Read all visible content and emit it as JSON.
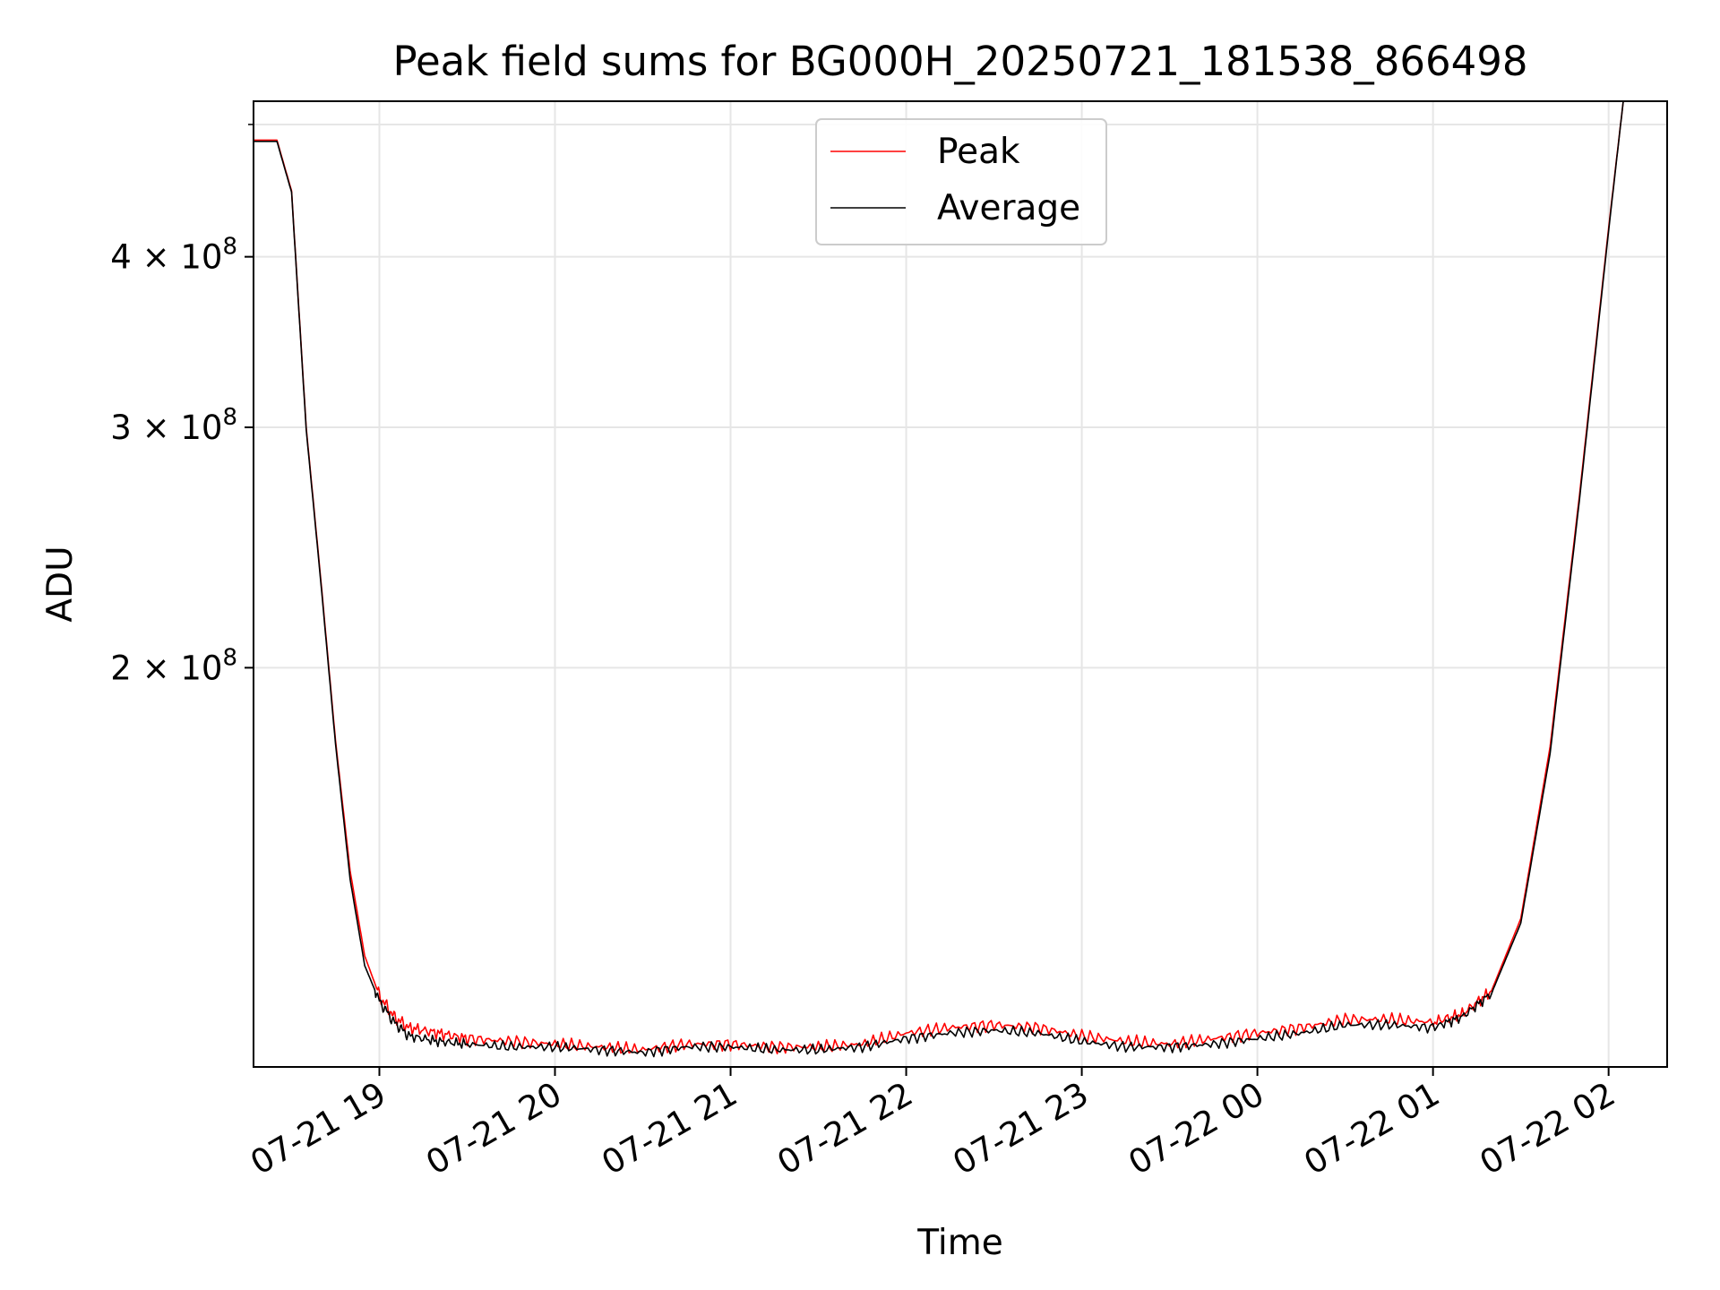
{
  "chart_data": {
    "type": "line",
    "title": "Peak field sums for BG000H_20250721_181538_866498",
    "xlabel": "Time",
    "ylabel": "ADU",
    "yscale": "log",
    "grid": true,
    "legend_position": "upper center",
    "x_range": [
      "2025-07-21 18:17",
      "2025-07-22 02:20"
    ],
    "ylim": [
      102000000,
      520000000
    ],
    "x_ticks": [
      {
        "value": "2025-07-21 19:00",
        "label": "07-21 19"
      },
      {
        "value": "2025-07-21 20:00",
        "label": "07-21 20"
      },
      {
        "value": "2025-07-21 21:00",
        "label": "07-21 21"
      },
      {
        "value": "2025-07-21 22:00",
        "label": "07-21 22"
      },
      {
        "value": "2025-07-21 23:00",
        "label": "07-21 23"
      },
      {
        "value": "2025-07-22 00:00",
        "label": "07-22 00"
      },
      {
        "value": "2025-07-22 01:00",
        "label": "07-22 01"
      },
      {
        "value": "2025-07-22 02:00",
        "label": "07-22 02"
      }
    ],
    "y_ticks": [
      {
        "value": 200000000,
        "base": "2",
        "exp": "8"
      },
      {
        "value": 300000000,
        "base": "3",
        "exp": "8"
      },
      {
        "value": 400000000,
        "base": "4",
        "exp": "8"
      }
    ],
    "x": [
      "2025-07-21 18:17",
      "2025-07-21 18:25",
      "2025-07-21 18:30",
      "2025-07-21 18:35",
      "2025-07-21 18:40",
      "2025-07-21 18:45",
      "2025-07-21 18:50",
      "2025-07-21 18:55",
      "2025-07-21 19:00",
      "2025-07-21 19:05",
      "2025-07-21 19:10",
      "2025-07-21 19:20",
      "2025-07-21 19:30",
      "2025-07-21 19:45",
      "2025-07-21 20:00",
      "2025-07-21 20:15",
      "2025-07-21 20:30",
      "2025-07-21 20:45",
      "2025-07-21 21:00",
      "2025-07-21 21:15",
      "2025-07-21 21:30",
      "2025-07-21 21:45",
      "2025-07-21 22:00",
      "2025-07-21 22:15",
      "2025-07-21 22:30",
      "2025-07-21 22:45",
      "2025-07-21 23:00",
      "2025-07-21 23:15",
      "2025-07-21 23:30",
      "2025-07-21 23:45",
      "2025-07-22 00:00",
      "2025-07-22 00:15",
      "2025-07-22 00:30",
      "2025-07-22 00:45",
      "2025-07-22 01:00",
      "2025-07-22 01:10",
      "2025-07-22 01:20",
      "2025-07-22 01:30",
      "2025-07-22 01:40",
      "2025-07-22 01:50",
      "2025-07-22 02:00",
      "2025-07-22 02:05",
      "2025-07-22 02:20"
    ],
    "series": [
      {
        "name": "Peak",
        "color": "#ff0000",
        "values": [
          487000000,
          487000000,
          447000000,
          300000000,
          232000000,
          177000000,
          142000000,
          123000000,
          115000000,
          111000000,
          109000000,
          108000000,
          107000000,
          106500000,
          106000000,
          105500000,
          105000000,
          106000000,
          106000000,
          105500000,
          105500000,
          106000000,
          108000000,
          109000000,
          109500000,
          109000000,
          107500000,
          106500000,
          106000000,
          107000000,
          108000000,
          109000000,
          110500000,
          110500000,
          110000000,
          111500000,
          116000000,
          131000000,
          175000000,
          267000000,
          420000000,
          520000000,
          520000000
        ]
      },
      {
        "name": "Average",
        "color": "#000000",
        "values": [
          486000000,
          486000000,
          446000000,
          299000000,
          231000000,
          176000000,
          140000000,
          121000000,
          114000000,
          110000000,
          107500000,
          106500000,
          106000000,
          105500000,
          105500000,
          105000000,
          104500000,
          105500000,
          105500000,
          105000000,
          105000000,
          105500000,
          107000000,
          108000000,
          108500000,
          108000000,
          106500000,
          105500000,
          105500000,
          106000000,
          107000000,
          108000000,
          109500000,
          109500000,
          109000000,
          111000000,
          115500000,
          130000000,
          173000000,
          265000000,
          418000000,
          520000000,
          520000000
        ]
      }
    ]
  }
}
